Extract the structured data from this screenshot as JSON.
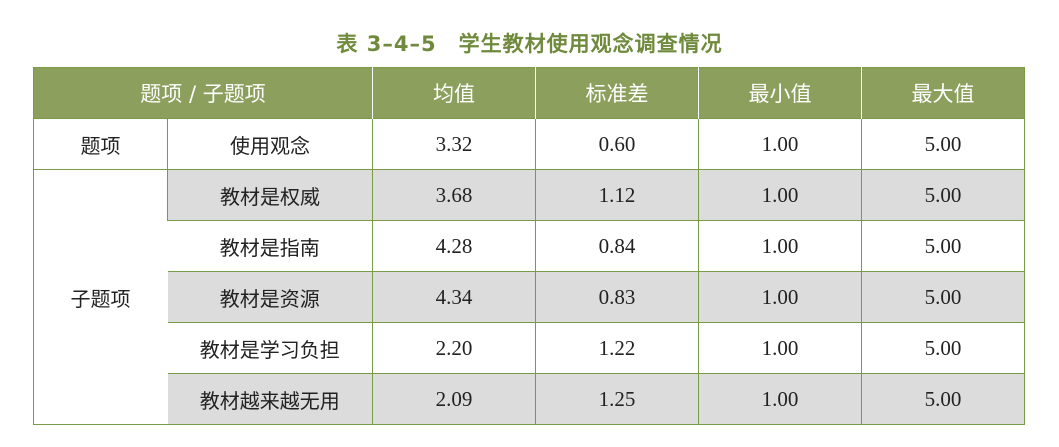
{
  "caption": "表 3–4–5　学生教材使用观念调查情况",
  "table": {
    "headers": [
      "题项 / 子题项",
      "均值",
      "标准差",
      "最小值",
      "最大值"
    ],
    "main_row": {
      "group": "题项",
      "item": "使用观念",
      "values": [
        "3.32",
        "0.60",
        "1.00",
        "5.00"
      ]
    },
    "sub_group_label": "子题项",
    "sub_rows": [
      {
        "item": "教材是权威",
        "values": [
          "3.68",
          "1.12",
          "1.00",
          "5.00"
        ]
      },
      {
        "item": "教材是指南",
        "values": [
          "4.28",
          "0.84",
          "1.00",
          "5.00"
        ]
      },
      {
        "item": "教材是资源",
        "values": [
          "4.34",
          "0.83",
          "1.00",
          "5.00"
        ]
      },
      {
        "item": "教材是学习负担",
        "values": [
          "2.20",
          "1.22",
          "1.00",
          "5.00"
        ]
      },
      {
        "item": "教材越来越无用",
        "values": [
          "2.09",
          "1.25",
          "1.00",
          "5.00"
        ]
      }
    ]
  }
}
